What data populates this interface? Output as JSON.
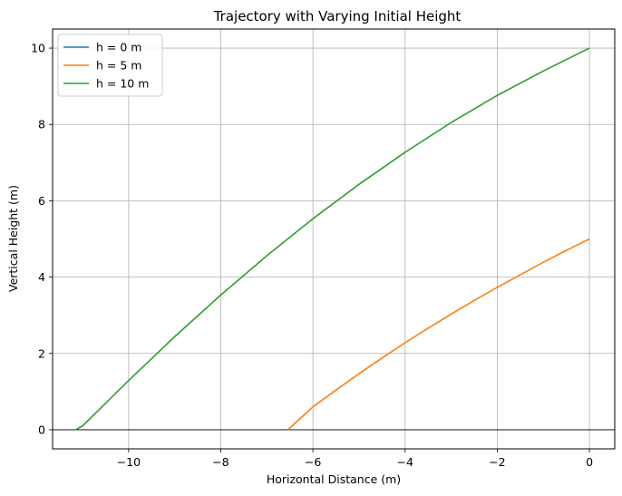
{
  "chart_data": {
    "type": "line",
    "title": "Trajectory with Varying Initial Height",
    "xlabel": "Horizontal Distance (m)",
    "ylabel": "Vertical Height (m)",
    "xlim": [
      -11.65,
      0.55
    ],
    "ylim": [
      -0.5,
      10.5
    ],
    "xticks": [
      -10,
      -8,
      -6,
      -4,
      -2,
      0
    ],
    "xtick_labels": [
      "−10",
      "−8",
      "−6",
      "−4",
      "−2",
      "0"
    ],
    "yticks": [
      0,
      2,
      4,
      6,
      8,
      10
    ],
    "ytick_labels": [
      "0",
      "2",
      "4",
      "6",
      "8",
      "10"
    ],
    "grid": true,
    "reference_line_y": 0,
    "legend_position": "upper-left",
    "series": [
      {
        "name": "h = 0 m",
        "color": "#1f77b4",
        "x": [
          0
        ],
        "y": [
          0
        ]
      },
      {
        "name": "h = 5 m",
        "color": "#ff7f0e",
        "x": [
          0,
          -0.5,
          -1,
          -1.5,
          -2,
          -2.5,
          -3,
          -3.5,
          -4,
          -4.5,
          -5,
          -5.5,
          -6,
          -6.5,
          -6.55
        ],
        "y": [
          5.0,
          4.7,
          4.39,
          4.06,
          3.73,
          3.39,
          3.03,
          2.66,
          2.28,
          1.88,
          1.47,
          1.04,
          0.6,
          0.05,
          0.0
        ]
      },
      {
        "name": "h = 10 m",
        "color": "#2ca02c",
        "x": [
          0,
          -1,
          -2,
          -3,
          -4,
          -5,
          -6,
          -7,
          -8,
          -9,
          -10,
          -11,
          -11.15
        ],
        "y": [
          10.0,
          9.4,
          8.76,
          8.05,
          7.27,
          6.43,
          5.53,
          4.56,
          3.53,
          2.44,
          1.29,
          0.1,
          0.0
        ]
      }
    ]
  }
}
